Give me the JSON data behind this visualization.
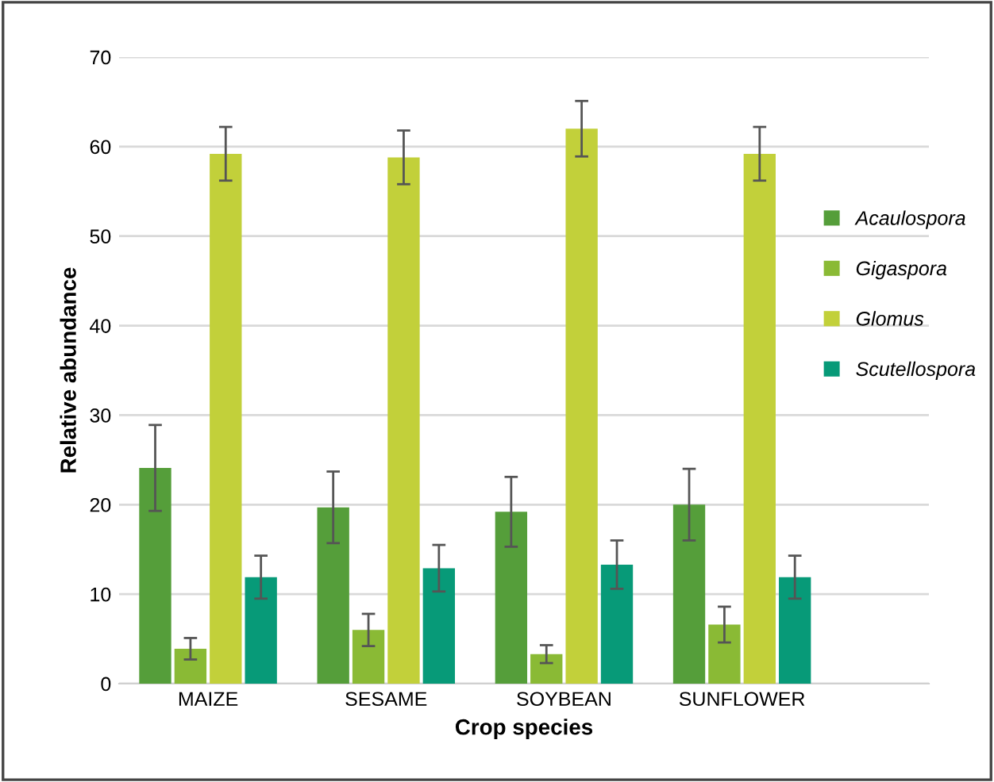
{
  "chart_data": {
    "type": "bar",
    "xlabel": "Crop species",
    "ylabel": "Relative abundance",
    "categories": [
      "MAIZE",
      "SESAME",
      "SOYBEAN",
      "SUNFLOWER"
    ],
    "series": [
      {
        "name": "Acaulospora",
        "color": "#559e3a",
        "values": [
          24.1,
          19.7,
          19.2,
          20.0
        ],
        "errors": [
          4.8,
          4.0,
          3.9,
          4.0
        ]
      },
      {
        "name": "Gigaspora",
        "color": "#8aba35",
        "values": [
          3.9,
          6.0,
          3.3,
          6.6
        ],
        "errors": [
          1.2,
          1.8,
          1.0,
          2.0
        ]
      },
      {
        "name": "Glomus",
        "color": "#c2d03a",
        "values": [
          59.2,
          58.8,
          62.0,
          59.2
        ],
        "errors": [
          3.0,
          3.0,
          3.1,
          3.0
        ]
      },
      {
        "name": "Scutellospora",
        "color": "#079a78",
        "values": [
          11.9,
          12.9,
          13.3,
          11.9
        ],
        "errors": [
          2.4,
          2.6,
          2.7,
          2.4
        ]
      }
    ],
    "ylim": [
      0,
      70
    ],
    "yticks": [
      0,
      10,
      20,
      30,
      40,
      50,
      60,
      70
    ],
    "grid": "y",
    "legend": "right"
  }
}
